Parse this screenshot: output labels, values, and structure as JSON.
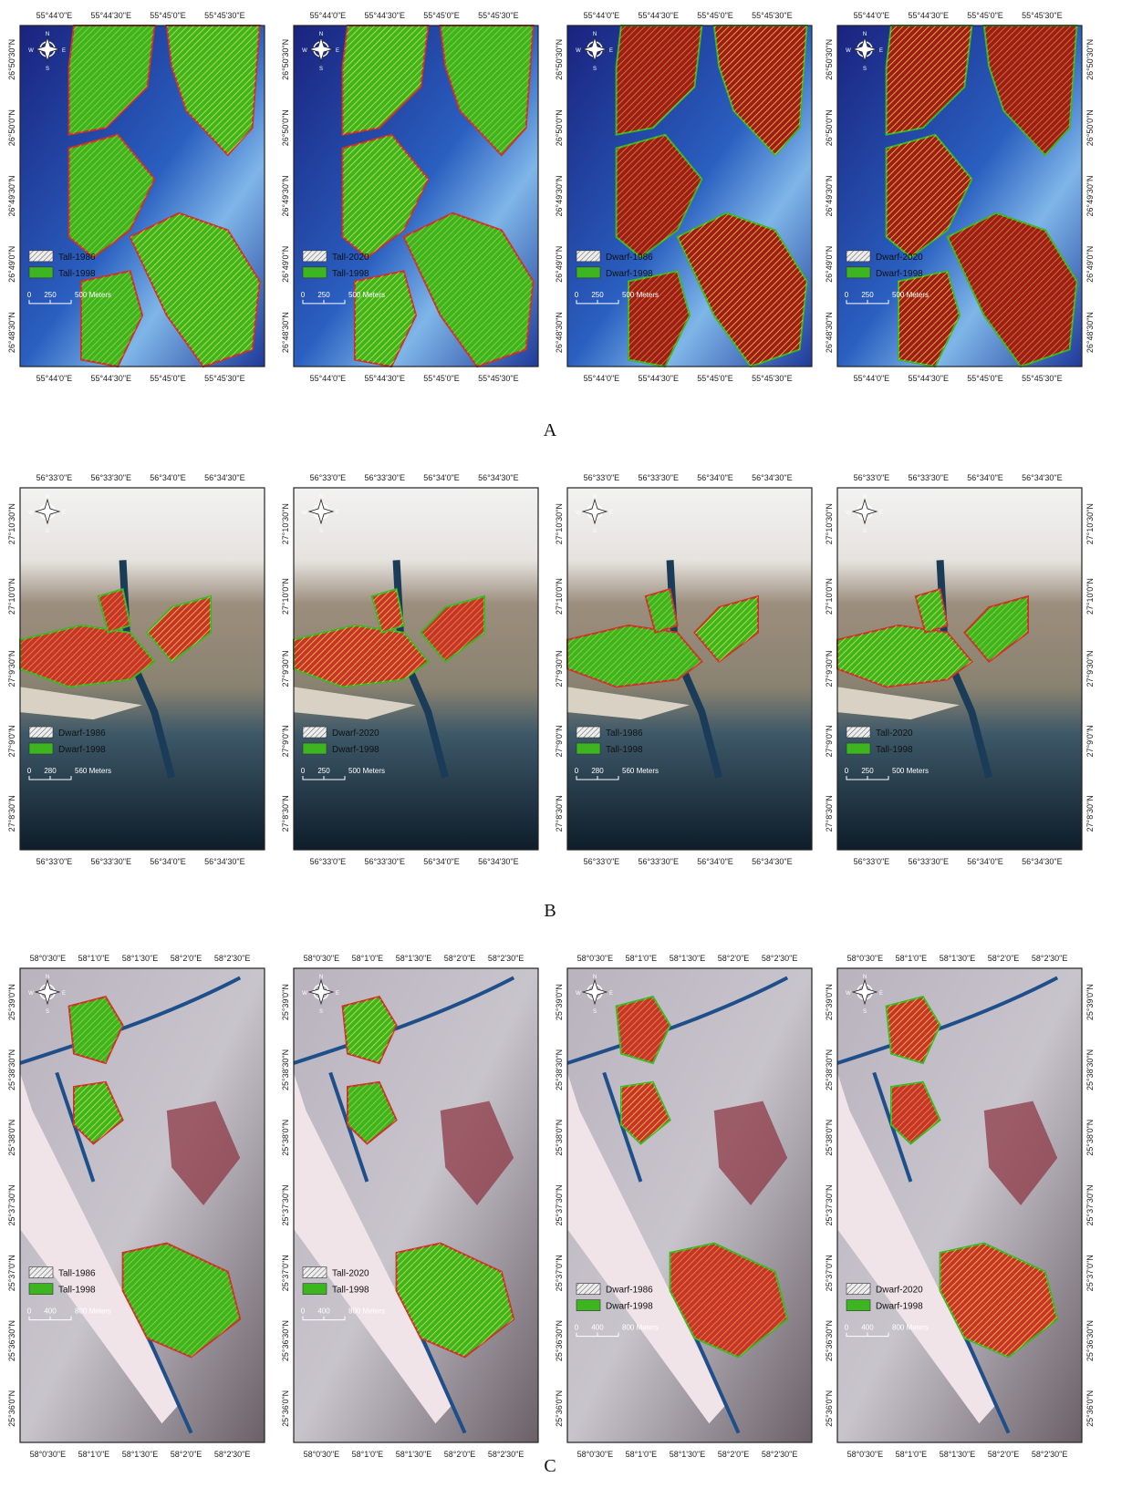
{
  "compass": [
    "N",
    "E",
    "S",
    "W"
  ],
  "rows": [
    {
      "label": "A",
      "x_labels": [
        "55°44'0\"E",
        "55°44'30\"E",
        "55°45'0\"E",
        "55°45'30\"E"
      ],
      "y_labels": [
        "26°50'30\"N",
        "26°50'0\"N",
        "26°49'30\"N",
        "26°49'0\"N",
        "26°48'30\"N"
      ],
      "panels": [
        {
          "legend": [
            "Tall-1986",
            "Tall-1998"
          ],
          "scale": [
            "0",
            "250",
            "500 Meters"
          ]
        },
        {
          "legend": [
            "Tall-2020",
            "Tall-1998"
          ],
          "scale": [
            "0",
            "250",
            "500 Meters"
          ]
        },
        {
          "legend": [
            "Dwarf-1986",
            "Dwarf-1998"
          ],
          "scale": [
            "0",
            "250",
            "500 Meters"
          ]
        },
        {
          "legend": [
            "Dwarf-2020",
            "Dwarf-1998"
          ],
          "scale": [
            "0",
            "250",
            "500 Meters"
          ]
        }
      ]
    },
    {
      "label": "B",
      "x_labels": [
        "56°33'0\"E",
        "56°33'30\"E",
        "56°34'0\"E",
        "56°34'30\"E"
      ],
      "y_labels": [
        "27°10'30\"N",
        "27°10'0\"N",
        "27°9'30\"N",
        "27°9'0\"N",
        "27°8'30\"N"
      ],
      "panels": [
        {
          "legend": [
            "Dwarf-1986",
            "Dwarf-1998"
          ],
          "scale": [
            "0",
            "280",
            "560 Meters"
          ]
        },
        {
          "legend": [
            "Dwarf-2020",
            "Dwarf-1998"
          ],
          "scale": [
            "0",
            "250",
            "500 Meters"
          ]
        },
        {
          "legend": [
            "Tall-1986",
            "Tall-1998"
          ],
          "scale": [
            "0",
            "280",
            "560 Meters"
          ]
        },
        {
          "legend": [
            "Tall-2020",
            "Tall-1998"
          ],
          "scale": [
            "0",
            "250",
            "500 Meters"
          ]
        }
      ]
    },
    {
      "label": "C",
      "x_labels": [
        "58°0'30\"E",
        "58°1'0\"E",
        "58°1'30\"E",
        "58°2'0\"E",
        "58°2'30\"E"
      ],
      "y_labels": [
        "25°39'0\"N",
        "25°38'30\"N",
        "25°38'0\"N",
        "25°37'30\"N",
        "25°37'0\"N",
        "25°36'30\"N",
        "25°36'0\"N"
      ],
      "panels": [
        {
          "legend": [
            "Tall-1986",
            "Tall-1998"
          ],
          "scale": [
            "0",
            "400",
            "800 Meters"
          ]
        },
        {
          "legend": [
            "Tall-2020",
            "Tall-1998"
          ],
          "scale": [
            "0",
            "400",
            "800 Meters"
          ]
        },
        {
          "legend": [
            "Dwarf-1986",
            "Dwarf-1998"
          ],
          "scale": [
            "0",
            "400",
            "800 Meters"
          ]
        },
        {
          "legend": [
            "Dwarf-2020",
            "Dwarf-1998"
          ],
          "scale": [
            "0",
            "400",
            "800 Meters"
          ]
        }
      ]
    }
  ]
}
